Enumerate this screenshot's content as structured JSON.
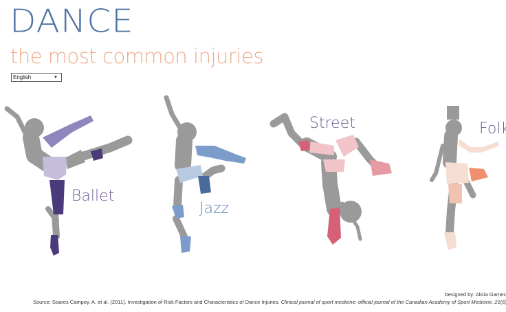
{
  "header": {
    "title": "DANCE",
    "subtitle": "the most common injuries"
  },
  "language_select": {
    "value": "English",
    "arrow_icon": "triangle-down-icon"
  },
  "dancers": [
    {
      "label": "Ballet",
      "color": "#6b5a93"
    },
    {
      "label": "Jazz",
      "color": "#5d82b7"
    },
    {
      "label": "Street",
      "color": "#6b5a93"
    },
    {
      "label": "Folk",
      "color": "#6b5a93"
    }
  ],
  "colors": {
    "silhouette": "#9a9a9a",
    "ballet_light": "#c5bedb",
    "ballet_mid": "#8f86bd",
    "ballet_dark": "#4a3a7a",
    "jazz_light": "#b9cbe3",
    "jazz_mid": "#7c9ccc",
    "jazz_dark": "#4a6a9e",
    "street_light": "#f0c4c8",
    "street_mid": "#e79aa3",
    "street_dark": "#d56077",
    "folk_light": "#f6ddd2",
    "folk_mid": "#f3c1b0",
    "folk_dark": "#f08e6e"
  },
  "footer": {
    "designer": "Designed by: Alicia Gamez",
    "source_prefix": "Source: Soares Campoy, A. et al. (2011).  Investigation of Risk Factors and Characteristics of Dance Injuries. ",
    "source_journal": "Clinical journal of sport medicine: official journal of the Canadian Academy of Sport Medicine, 21",
    "source_issue": "(6)"
  }
}
